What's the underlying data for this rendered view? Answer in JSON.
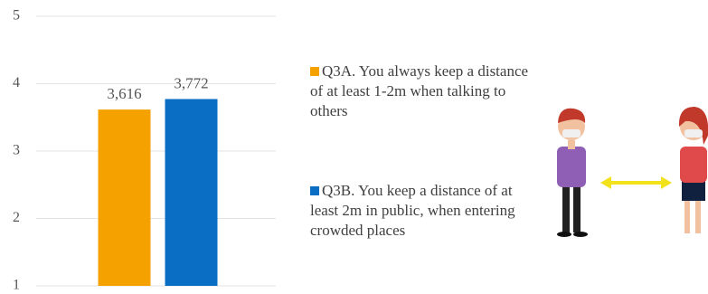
{
  "chart_data": {
    "type": "bar",
    "categories": [
      null
    ],
    "series": [
      {
        "name": "Q3A. You always keep a distance of at least 1-2m when talking to others",
        "color": "#f5a100",
        "values": [
          3.616
        ],
        "value_labels": [
          "3,616"
        ]
      },
      {
        "name": "Q3B. You keep a distance of at least 2m in public, when entering crowded places",
        "color": "#0a6ec4",
        "values": [
          3.772
        ],
        "value_labels": [
          "3,772"
        ]
      }
    ],
    "ylim": [
      1,
      5
    ],
    "yticks": [
      1,
      2,
      3,
      4,
      5
    ],
    "grid": true,
    "legend": "right"
  }
}
